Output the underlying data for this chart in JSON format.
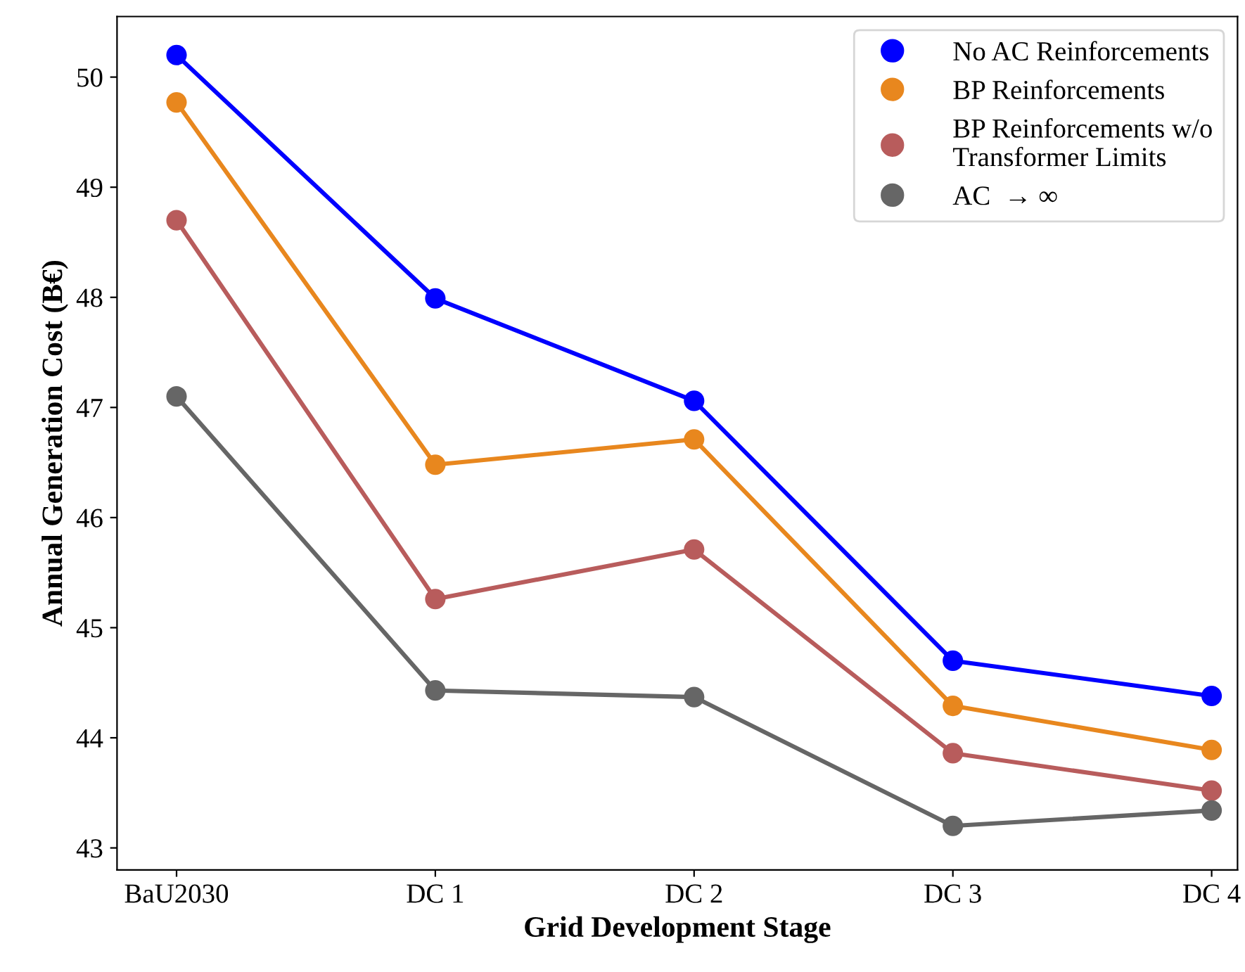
{
  "chart_data": {
    "type": "line",
    "xlabel": "Grid Development Stage",
    "ylabel": "Annual Generation Cost (B€)",
    "categories": [
      "BaU2030",
      "DC 1",
      "DC 2",
      "DC 3",
      "DC 4"
    ],
    "series": [
      {
        "name": "No AC Reinforcements",
        "color": "#0000ff",
        "values": [
          50.2,
          47.99,
          47.06,
          44.7,
          44.38
        ]
      },
      {
        "name": "BP Reinforcements",
        "color": "#e8871e",
        "values": [
          49.77,
          46.48,
          46.71,
          44.29,
          43.89
        ]
      },
      {
        "name": "BP Reinforcements w/o\nTransformer Limits",
        "color": "#b85c5c",
        "values": [
          48.7,
          45.26,
          45.71,
          43.86,
          43.52
        ]
      },
      {
        "name": "AC  → ∞",
        "color": "#666666",
        "values": [
          47.1,
          44.43,
          44.37,
          43.2,
          43.34
        ]
      }
    ],
    "ylim": [
      42.8,
      50.55
    ],
    "yticks": [
      43,
      44,
      45,
      46,
      47,
      48,
      49,
      50
    ],
    "marker": "circle",
    "line_style": "solid",
    "grid": false,
    "legend": "top right"
  }
}
